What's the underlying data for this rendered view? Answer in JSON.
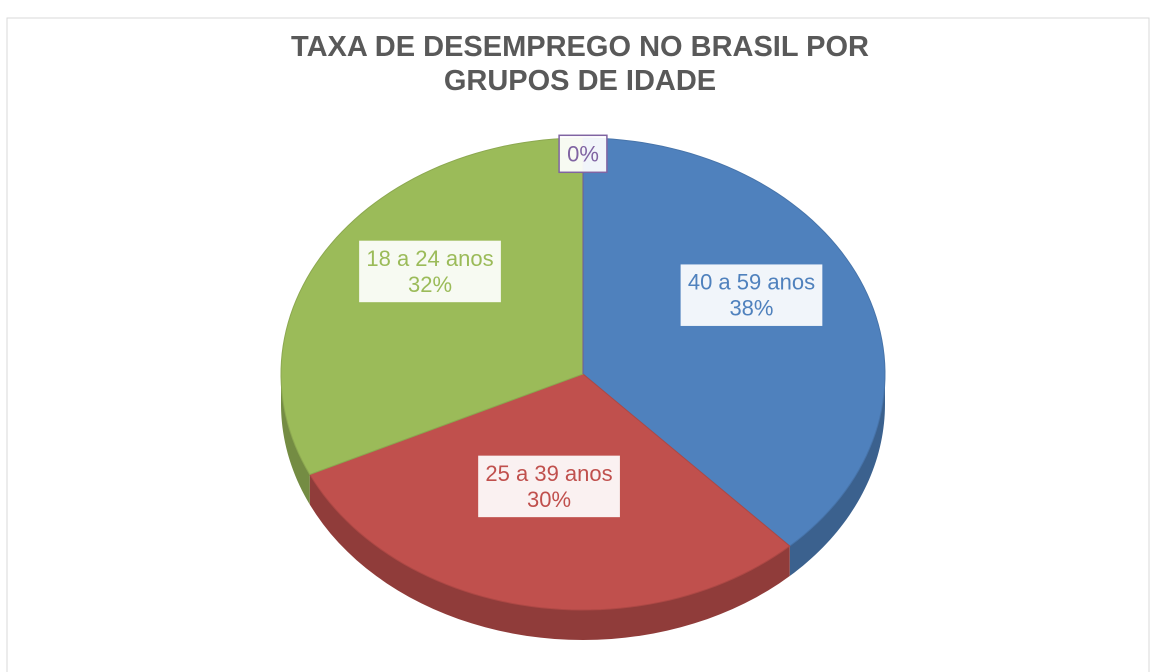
{
  "chart_data": {
    "type": "pie",
    "title": "TAXA DE DESEMPREGO NO BRASIL POR GRUPOS DE IDADE",
    "categories": [
      "40 a 59 anos",
      "25 a 39 anos",
      "18 a 24 anos",
      null
    ],
    "values": [
      38,
      30,
      32,
      0
    ],
    "value_labels": [
      "38%",
      "30%",
      "32%",
      "0%"
    ],
    "colors": [
      "#4f81bd",
      "#c0504d",
      "#9bbb59",
      "#8064a2"
    ]
  }
}
